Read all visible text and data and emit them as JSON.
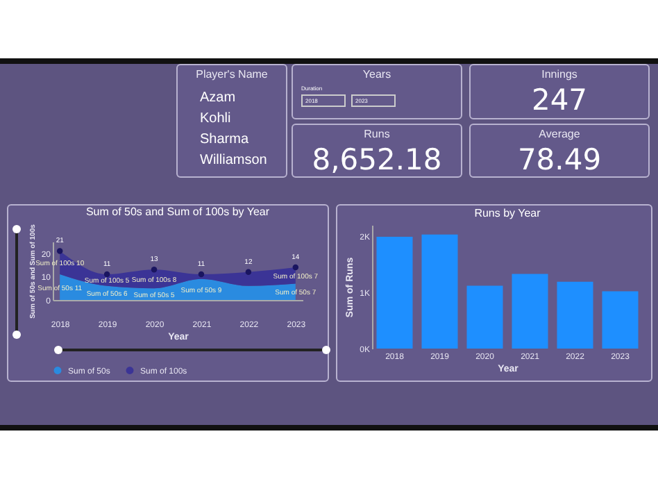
{
  "chart_data": [
    {
      "type": "other",
      "title": "Player's Name",
      "annotations": [
        "Azam",
        "Kohli",
        "Sharma",
        "Williamson"
      ]
    },
    {
      "type": "other",
      "title": "Years",
      "annotations": [
        "Duration",
        "2018",
        "2023"
      ]
    },
    {
      "type": "other",
      "title": "Runs",
      "annotations": [
        "8,652.18"
      ]
    },
    {
      "type": "other",
      "title": "Innings",
      "annotations": [
        "247"
      ]
    },
    {
      "type": "other",
      "title": "Average",
      "annotations": [
        "78.49"
      ]
    },
    {
      "type": "area",
      "stacked": true,
      "title": "Sum of 50s and Sum of 100s by Year",
      "xlabel": "Year",
      "ylabel": "Sum of 50s and Sum of 100s",
      "categories": [
        "2018",
        "2019",
        "2020",
        "2021",
        "2022",
        "2023"
      ],
      "ylim": [
        0,
        25
      ],
      "yticks": [
        0,
        10,
        20
      ],
      "legend": "bottom",
      "totals": [
        "21",
        "11",
        "13",
        "11",
        "12",
        "14"
      ],
      "series": [
        {
          "name": "Sum of 50s",
          "color": "#2a8be0",
          "values": [
            11,
            6,
            5,
            9,
            6,
            7
          ],
          "value_labels": [
            "Sum of 50s 11",
            "Sum of 50s 6",
            "Sum of 50s 5",
            "Sum of 50s 9",
            null,
            "Sum of 50s 7"
          ]
        },
        {
          "name": "Sum of 100s",
          "color": "#3b3496",
          "values": [
            10,
            5,
            8,
            2,
            6,
            7
          ],
          "marker": "circle",
          "value_labels": [
            "Sum of 100s 10",
            "Sum of 100s 5",
            "Sum of 100s 8",
            null,
            null,
            "Sum of 100s 7"
          ]
        }
      ]
    },
    {
      "type": "bar",
      "title": "Runs by Year",
      "xlabel": "Year",
      "ylabel": "Sum of Runs",
      "categories": [
        "2018",
        "2019",
        "2020",
        "2021",
        "2022",
        "2023"
      ],
      "values": [
        1.99,
        2.03,
        1.12,
        1.33,
        1.19,
        1.02
      ],
      "color": "#1e8fff",
      "ylim": [
        0,
        2.2
      ],
      "yticks": [
        {
          "value": 0,
          "label": "0K"
        },
        {
          "value": 1,
          "label": "1K"
        },
        {
          "value": 2,
          "label": "2K"
        }
      ]
    }
  ]
}
